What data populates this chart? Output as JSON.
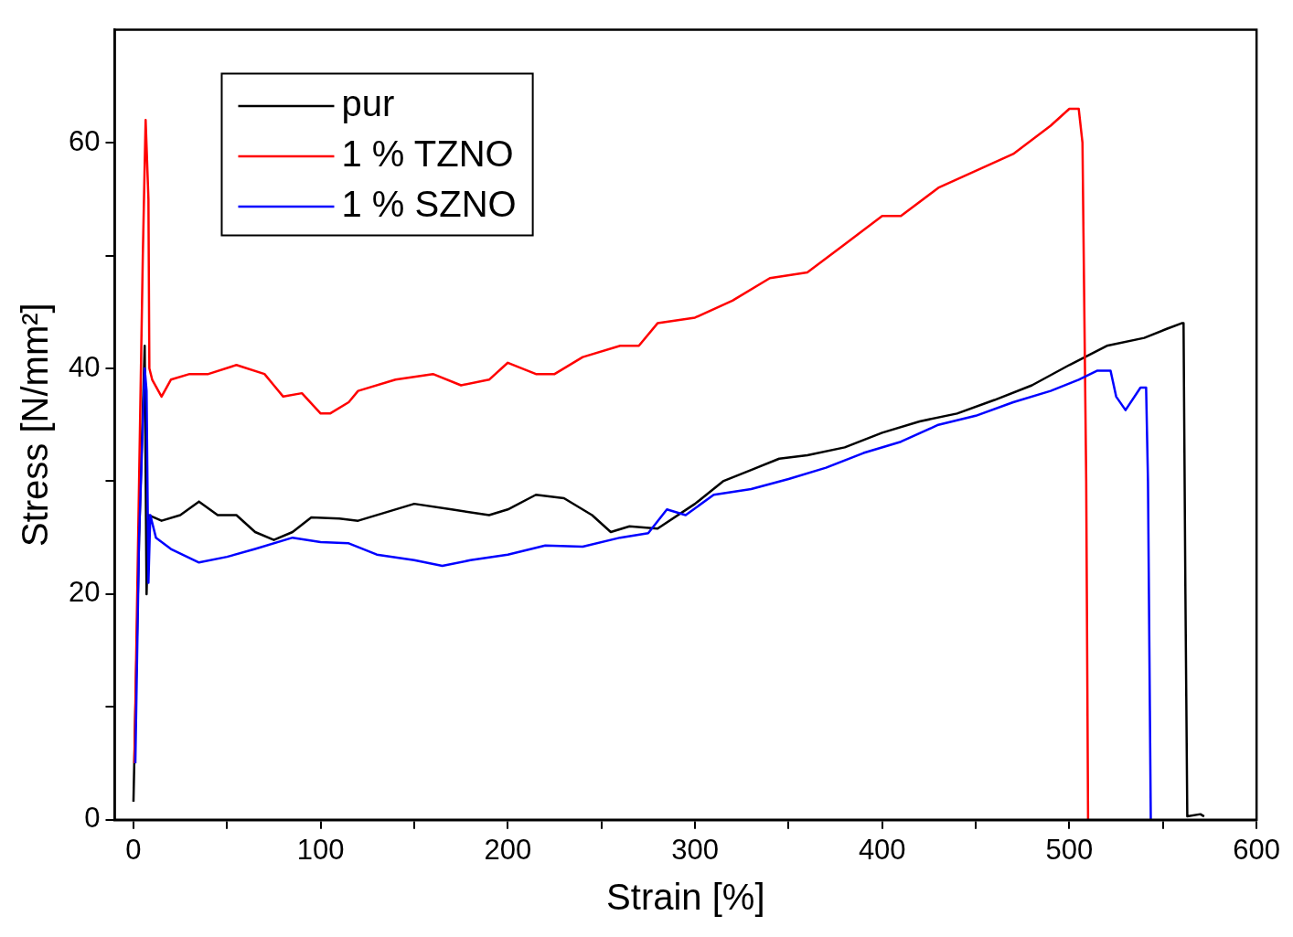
{
  "chart_data": {
    "type": "line",
    "xlabel": "Strain [%]",
    "ylabel": "Stress [N/mm²]",
    "xlim": [
      -10,
      600
    ],
    "ylim": [
      0,
      70
    ],
    "xticks": [
      0,
      {
        "value": 50,
        "label": null
      },
      100,
      {
        "value": 150,
        "label": null
      },
      200,
      {
        "value": 250,
        "label": null
      },
      300,
      {
        "value": 350,
        "label": null
      },
      400,
      {
        "value": 450,
        "label": null
      },
      500,
      {
        "value": 550,
        "label": null
      },
      600
    ],
    "yticks": [
      0,
      {
        "value": 10,
        "label": null
      },
      20,
      {
        "value": 30,
        "label": null
      },
      40,
      {
        "value": 50,
        "label": null
      },
      60
    ],
    "grid": false,
    "legend": "top left",
    "marker": "none",
    "line_style": "solid",
    "series": [
      {
        "name": "pur",
        "color": "#000000",
        "x": [
          0,
          3,
          6,
          7,
          8,
          15,
          25,
          35,
          45,
          55,
          65,
          75,
          85,
          95,
          110,
          120,
          150,
          170,
          190,
          200,
          215,
          230,
          245,
          255,
          265,
          280,
          300,
          315,
          330,
          345,
          360,
          380,
          400,
          420,
          440,
          460,
          480,
          500,
          520,
          540,
          552,
          560,
          561,
          562,
          563,
          570,
          572
        ],
        "values": [
          1.6,
          25,
          42,
          20,
          27,
          26.5,
          27,
          28.2,
          27,
          27,
          25.5,
          24.8,
          25.5,
          26.8,
          26.7,
          26.5,
          28,
          27.5,
          27,
          27.5,
          28.8,
          28.5,
          27,
          25.5,
          26,
          25.8,
          28,
          30,
          31,
          32,
          32.3,
          33,
          34.3,
          35.3,
          36,
          37.2,
          38.5,
          40.3,
          42,
          42.7,
          43.5,
          44,
          44,
          20,
          0.3,
          0.5,
          0.3
        ]
      },
      {
        "name": "1 % TZNO",
        "color": "#ff0000",
        "x": [
          0.5,
          3,
          5,
          6.5,
          8,
          8.5,
          10,
          15,
          20,
          30,
          40,
          55,
          70,
          75,
          80,
          90,
          100,
          105,
          115,
          120,
          140,
          160,
          175,
          190,
          200,
          215,
          225,
          240,
          260,
          270,
          280,
          300,
          320,
          340,
          360,
          380,
          400,
          410,
          430,
          450,
          470,
          490,
          500,
          505,
          507,
          509,
          510
        ],
        "values": [
          5,
          30,
          50,
          62,
          55,
          40,
          39,
          37.5,
          39,
          39.5,
          39.5,
          40.3,
          39.5,
          38.5,
          37.5,
          37.8,
          36,
          36,
          37,
          38,
          39,
          39.5,
          38.5,
          39,
          40.5,
          39.5,
          39.5,
          41,
          42,
          42,
          44,
          44.5,
          46,
          48,
          48.5,
          51,
          53.5,
          53.5,
          56,
          57.5,
          59,
          61.5,
          63,
          63,
          60,
          30,
          0
        ]
      },
      {
        "name": "1 % SZNO",
        "color": "#0000ff",
        "x": [
          1,
          3,
          6,
          7,
          8,
          9,
          12,
          20,
          35,
          50,
          65,
          85,
          100,
          115,
          130,
          150,
          165,
          180,
          200,
          220,
          240,
          260,
          275,
          285,
          295,
          310,
          330,
          350,
          370,
          390,
          410,
          430,
          450,
          470,
          490,
          505,
          515,
          522,
          525,
          530,
          538,
          541,
          542,
          543,
          543.5
        ],
        "values": [
          5,
          25,
          40,
          38,
          21,
          27,
          25,
          24,
          22.8,
          23.3,
          24,
          25,
          24.6,
          24.5,
          23.5,
          23,
          22.5,
          23,
          23.5,
          24.3,
          24.2,
          25,
          25.4,
          27.5,
          27,
          28.8,
          29.3,
          30.2,
          31.2,
          32.5,
          33.5,
          35,
          35.8,
          37,
          38,
          39,
          39.8,
          39.8,
          37.5,
          36.3,
          38.3,
          38.3,
          30,
          10,
          0
        ]
      }
    ]
  }
}
